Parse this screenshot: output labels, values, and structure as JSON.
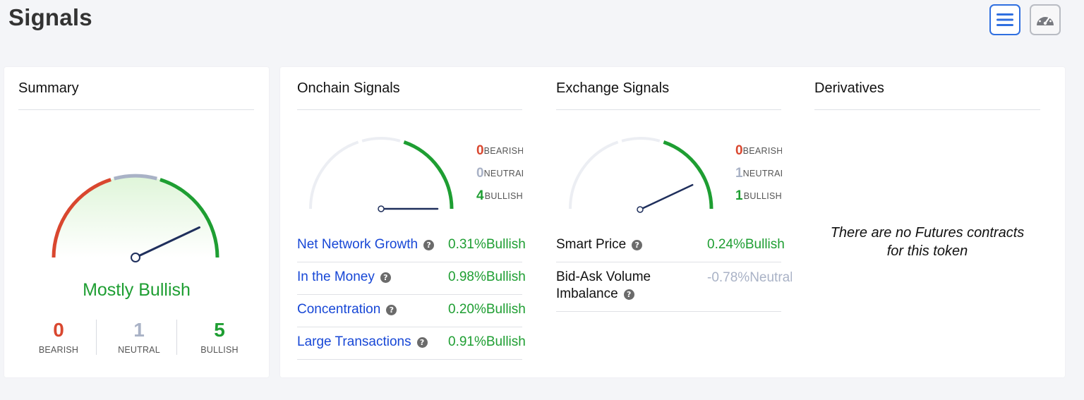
{
  "page": {
    "title": "Signals"
  },
  "toolbar": {
    "list_view_icon": "list-view-icon",
    "gauge_view_icon": "speedometer-icon"
  },
  "colors": {
    "bullish": "#1e9e32",
    "bearish": "#d9472f",
    "neutral": "#a9b2c6",
    "link": "#1747d6",
    "accent": "#2f6fe0",
    "needle": "#1f2f5c"
  },
  "summary": {
    "title": "Summary",
    "verdict": "Mostly Bullish",
    "needle_value": 0.86,
    "counts": [
      {
        "num": "0",
        "label": "BEARISH",
        "tone": "bearish"
      },
      {
        "num": "1",
        "label": "NEUTRAL",
        "tone": "neutral"
      },
      {
        "num": "5",
        "label": "BULLISH",
        "tone": "bullish"
      }
    ]
  },
  "onchain": {
    "title": "Onchain Signals",
    "needle_value": 1.0,
    "counts": [
      {
        "num": "0",
        "label": "BEARISH"
      },
      {
        "num": "0",
        "label": "NEUTRAL"
      },
      {
        "num": "4",
        "label": "BULLISH"
      }
    ],
    "rows": [
      {
        "name": "Net Network Growth",
        "value": "0.31%",
        "signal": "Bullish"
      },
      {
        "name": "In the Money",
        "value": "0.98%",
        "signal": "Bullish"
      },
      {
        "name": "Concentration",
        "value": "0.20%",
        "signal": "Bullish"
      },
      {
        "name": "Large Transactions",
        "value": "0.91%",
        "signal": "Bullish"
      }
    ]
  },
  "exchange": {
    "title": "Exchange Signals",
    "needle_value": 0.86,
    "counts": [
      {
        "num": "0",
        "label": "BEARISH"
      },
      {
        "num": "1",
        "label": "NEUTRAL"
      },
      {
        "num": "1",
        "label": "BULLISH"
      }
    ],
    "rows": [
      {
        "name": "Smart Price",
        "value": "0.24%",
        "signal": "Bullish"
      },
      {
        "name_line1": "Bid-Ask Volume",
        "name_line2": "Imbalance",
        "value": "-0.78%",
        "signal": "Neutral"
      }
    ]
  },
  "derivatives": {
    "title": "Derivatives",
    "message_line1": "There are no Futures contracts",
    "message_line2": "for this token"
  }
}
